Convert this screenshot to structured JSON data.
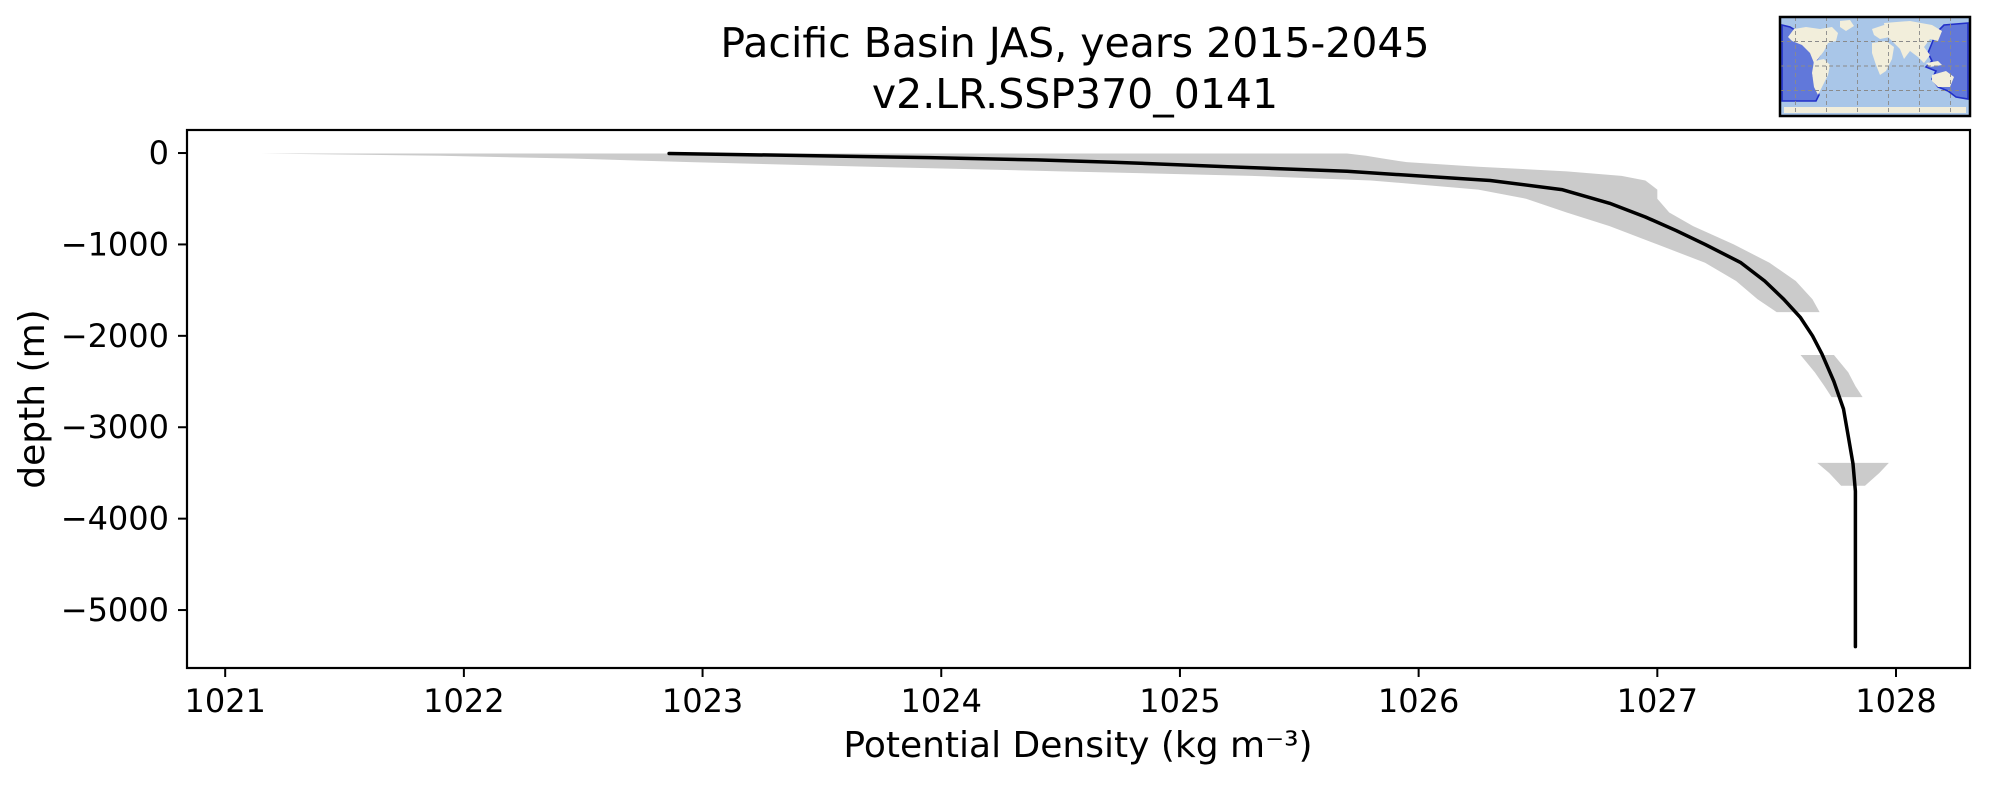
{
  "header": {
    "title": "Pacific Basin JAS, years 2015-2045",
    "subtitle": "v2.LR.SSP370_0141"
  },
  "chart_data": {
    "type": "line",
    "title": "Pacific Basin JAS, years 2015-2045",
    "subtitle": "v2.LR.SSP370_0141",
    "xlabel": "Potential Density (kg m⁻³)",
    "ylabel": "depth (m)",
    "xlim": [
      1020.84,
      1028.31
    ],
    "ylim": [
      -5634,
      252
    ],
    "x_ticks": [
      1021,
      1022,
      1023,
      1024,
      1025,
      1026,
      1027,
      1028
    ],
    "y_ticks": [
      0,
      -1000,
      -2000,
      -3000,
      -4000,
      -5000
    ],
    "grid": false,
    "legend": "none",
    "series": [
      {
        "name": "mean potential density profile",
        "style": "line",
        "color": "#000000",
        "depth": [
          -5,
          -25,
          -50,
          -75,
          -100,
          -150,
          -200,
          -300,
          -400,
          -550,
          -700,
          -850,
          -1000,
          -1200,
          -1400,
          -1600,
          -1800,
          -2000,
          -2200,
          -2500,
          -2800,
          -3100,
          -3400,
          -3700,
          -4000,
          -4600,
          -5400
        ],
        "density": [
          1022.86,
          1023.35,
          1023.95,
          1024.4,
          1024.72,
          1025.2,
          1025.7,
          1026.3,
          1026.6,
          1026.8,
          1026.95,
          1027.08,
          1027.2,
          1027.35,
          1027.45,
          1027.53,
          1027.6,
          1027.65,
          1027.69,
          1027.74,
          1027.78,
          1027.8,
          1027.82,
          1027.83,
          1027.83,
          1027.83,
          1027.83
        ]
      },
      {
        "name": "min-max envelope",
        "style": "band",
        "color": "#cbcbcb",
        "segments": [
          {
            "depth": [
              -5,
              -30,
              -60,
              -100,
              -150,
              -200,
              -250,
              -300,
              -400,
              -500,
              -650,
              -800,
              -1000,
              -1200,
              -1400,
              -1600,
              -1740
            ],
            "min": [
              1021.15,
              1021.9,
              1022.45,
              1022.95,
              1023.7,
              1024.5,
              1025.3,
              1025.8,
              1026.25,
              1026.45,
              1026.62,
              1026.8,
              1027.0,
              1027.2,
              1027.33,
              1027.42,
              1027.5
            ],
            "max": [
              1025.7,
              1025.78,
              1025.85,
              1025.95,
              1026.25,
              1026.62,
              1026.85,
              1026.95,
              1027.0,
              1027.0,
              1027.05,
              1027.15,
              1027.32,
              1027.47,
              1027.58,
              1027.65,
              1027.68
            ]
          },
          {
            "depth": [
              -2210,
              -2400,
              -2550,
              -2670
            ],
            "min": [
              1027.6,
              1027.66,
              1027.7,
              1027.73
            ],
            "max": [
              1027.74,
              1027.8,
              1027.83,
              1027.86
            ]
          },
          {
            "depth": [
              -3390,
              -3500,
              -3640
            ],
            "min": [
              1027.67,
              1027.72,
              1027.77
            ],
            "max": [
              1027.97,
              1027.93,
              1027.87
            ]
          }
        ]
      }
    ],
    "inset_map": {
      "description": "world map with Pacific Basin highlighted",
      "highlight_region": "Pacific"
    }
  },
  "colors": {
    "line": "#000000",
    "band": "#cbcbcb",
    "map_ocean": "#a9c6e8",
    "map_land": "#f2eedb",
    "map_highlight": "#4f64d6",
    "map_highlight_edge": "#2230c8",
    "map_grid": "#8a8a8a",
    "axes_edge": "#000000"
  }
}
